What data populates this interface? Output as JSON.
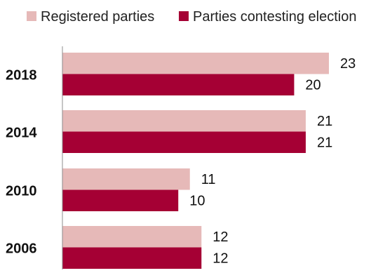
{
  "chart_data": {
    "type": "bar",
    "orientation": "horizontal",
    "categories": [
      "2018",
      "2014",
      "2010",
      "2006"
    ],
    "series": [
      {
        "name": "Registered parties",
        "values": [
          23,
          21,
          11,
          12
        ],
        "color": "#e6b9b8"
      },
      {
        "name": "Parties contesting election",
        "values": [
          20,
          21,
          10,
          12
        ],
        "color": "#a50034"
      }
    ],
    "title": "",
    "xlabel": "",
    "ylabel": "",
    "xlim": [
      0,
      23
    ],
    "grid": false,
    "legend_position": "top-right",
    "data_labels": true
  }
}
